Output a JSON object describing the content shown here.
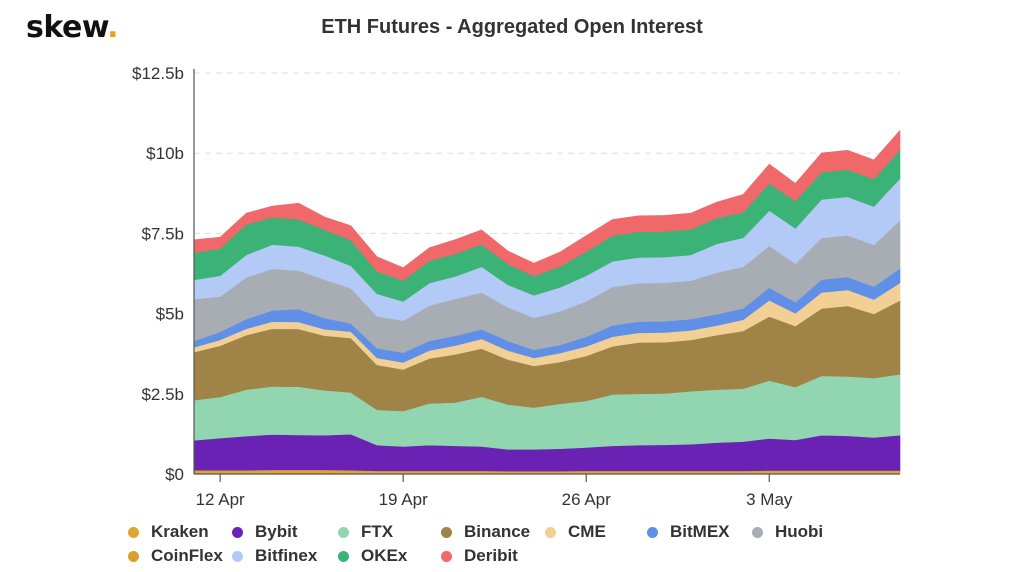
{
  "logo": {
    "text": "skew",
    "dot": "."
  },
  "chart_data": {
    "type": "area",
    "stacked": true,
    "title": "ETH Futures - Aggregated Open Interest",
    "xlabel": "",
    "ylabel": "",
    "ylim": [
      0,
      12.5
    ],
    "y_ticks": [
      {
        "value": 0,
        "label": "$0"
      },
      {
        "value": 2.5,
        "label": "$2.5b"
      },
      {
        "value": 5,
        "label": "$5b"
      },
      {
        "value": 7.5,
        "label": "$7.5b"
      },
      {
        "value": 10,
        "label": "$10b"
      },
      {
        "value": 12.5,
        "label": "$12.5b"
      }
    ],
    "x": [
      "2021-04-11",
      "2021-04-12",
      "2021-04-13",
      "2021-04-14",
      "2021-04-15",
      "2021-04-16",
      "2021-04-17",
      "2021-04-18",
      "2021-04-19",
      "2021-04-20",
      "2021-04-21",
      "2021-04-22",
      "2021-04-23",
      "2021-04-24",
      "2021-04-25",
      "2021-04-26",
      "2021-04-27",
      "2021-04-28",
      "2021-04-29",
      "2021-04-30",
      "2021-05-01",
      "2021-05-02",
      "2021-05-03",
      "2021-05-04",
      "2021-05-05",
      "2021-05-06",
      "2021-05-07",
      "2021-05-08"
    ],
    "x_ticks": [
      {
        "value": "2021-04-12",
        "label": "12 Apr"
      },
      {
        "value": "2021-04-19",
        "label": "19 Apr"
      },
      {
        "value": "2021-04-26",
        "label": "26 Apr"
      },
      {
        "value": "2021-05-03",
        "label": "3 May"
      }
    ],
    "grid": true,
    "legend_position": "bottom",
    "series": [
      {
        "name": "Kraken",
        "color": "#e0a52f",
        "values": [
          0.09,
          0.09,
          0.09,
          0.1,
          0.1,
          0.1,
          0.09,
          0.08,
          0.08,
          0.08,
          0.08,
          0.08,
          0.07,
          0.07,
          0.07,
          0.08,
          0.08,
          0.08,
          0.08,
          0.08,
          0.08,
          0.08,
          0.09,
          0.09,
          0.09,
          0.09,
          0.09,
          0.09
        ]
      },
      {
        "name": "CoinFlex",
        "color": "#d9a02c",
        "values": [
          0.03,
          0.03,
          0.03,
          0.03,
          0.03,
          0.03,
          0.03,
          0.02,
          0.02,
          0.02,
          0.02,
          0.02,
          0.02,
          0.02,
          0.02,
          0.02,
          0.02,
          0.02,
          0.02,
          0.02,
          0.02,
          0.02,
          0.02,
          0.02,
          0.02,
          0.02,
          0.02,
          0.02
        ]
      },
      {
        "name": "Bybit",
        "color": "#6a22b5",
        "values": [
          0.93,
          1.0,
          1.06,
          1.1,
          1.09,
          1.08,
          1.12,
          0.8,
          0.76,
          0.8,
          0.78,
          0.76,
          0.68,
          0.68,
          0.7,
          0.73,
          0.78,
          0.8,
          0.81,
          0.83,
          0.88,
          0.91,
          1.0,
          0.95,
          1.1,
          1.08,
          1.03,
          1.1
        ]
      },
      {
        "name": "FTX",
        "color": "#91d6b1",
        "values": [
          1.25,
          1.28,
          1.45,
          1.5,
          1.5,
          1.4,
          1.3,
          1.1,
          1.1,
          1.3,
          1.35,
          1.55,
          1.4,
          1.3,
          1.4,
          1.45,
          1.6,
          1.6,
          1.6,
          1.65,
          1.65,
          1.65,
          1.8,
          1.65,
          1.85,
          1.85,
          1.85,
          1.9
        ]
      },
      {
        "name": "Binance",
        "color": "#a08347",
        "values": [
          1.5,
          1.6,
          1.7,
          1.8,
          1.8,
          1.7,
          1.7,
          1.4,
          1.3,
          1.4,
          1.5,
          1.5,
          1.4,
          1.3,
          1.3,
          1.4,
          1.5,
          1.6,
          1.6,
          1.6,
          1.7,
          1.8,
          2.0,
          1.9,
          2.1,
          2.2,
          2.0,
          2.3
        ]
      },
      {
        "name": "CME",
        "color": "#f2cf94",
        "values": [
          0.15,
          0.18,
          0.2,
          0.22,
          0.22,
          0.2,
          0.2,
          0.22,
          0.22,
          0.25,
          0.28,
          0.3,
          0.28,
          0.25,
          0.28,
          0.3,
          0.3,
          0.3,
          0.3,
          0.3,
          0.3,
          0.35,
          0.5,
          0.4,
          0.5,
          0.5,
          0.45,
          0.55
        ]
      },
      {
        "name": "BitMEX",
        "color": "#5f8fe6",
        "values": [
          0.2,
          0.25,
          0.3,
          0.35,
          0.4,
          0.35,
          0.25,
          0.3,
          0.3,
          0.3,
          0.3,
          0.3,
          0.3,
          0.25,
          0.25,
          0.3,
          0.35,
          0.35,
          0.35,
          0.35,
          0.35,
          0.35,
          0.4,
          0.35,
          0.4,
          0.4,
          0.4,
          0.45
        ]
      },
      {
        "name": "Huobi",
        "color": "#a7adb3",
        "values": [
          1.3,
          1.1,
          1.3,
          1.3,
          1.2,
          1.2,
          1.1,
          1.0,
          1.0,
          1.1,
          1.15,
          1.15,
          1.05,
          1.0,
          1.05,
          1.1,
          1.2,
          1.2,
          1.2,
          1.2,
          1.3,
          1.3,
          1.3,
          1.2,
          1.3,
          1.3,
          1.3,
          1.5
        ]
      },
      {
        "name": "Bitfinex",
        "color": "#b3c9f6",
        "values": [
          0.6,
          0.65,
          0.7,
          0.75,
          0.75,
          0.75,
          0.7,
          0.7,
          0.6,
          0.7,
          0.7,
          0.8,
          0.7,
          0.7,
          0.75,
          0.8,
          0.8,
          0.8,
          0.8,
          0.8,
          0.9,
          0.9,
          1.1,
          1.1,
          1.2,
          1.2,
          1.2,
          1.3
        ]
      },
      {
        "name": "OKEx",
        "color": "#3bb376",
        "values": [
          0.85,
          0.85,
          0.95,
          0.85,
          0.85,
          0.8,
          0.8,
          0.7,
          0.65,
          0.7,
          0.7,
          0.7,
          0.65,
          0.6,
          0.65,
          0.75,
          0.8,
          0.8,
          0.8,
          0.8,
          0.8,
          0.8,
          0.85,
          0.85,
          0.85,
          0.85,
          0.85,
          0.9
        ]
      },
      {
        "name": "Deribit",
        "color": "#f0686a",
        "values": [
          0.4,
          0.35,
          0.35,
          0.35,
          0.5,
          0.4,
          0.45,
          0.45,
          0.4,
          0.4,
          0.45,
          0.45,
          0.4,
          0.4,
          0.45,
          0.5,
          0.5,
          0.5,
          0.5,
          0.5,
          0.5,
          0.55,
          0.6,
          0.55,
          0.6,
          0.6,
          0.6,
          0.6
        ]
      }
    ]
  },
  "legend_rows": [
    [
      "Kraken",
      "Bybit",
      "FTX",
      "Binance",
      "CME",
      "BitMEX",
      "Huobi"
    ],
    [
      "CoinFlex",
      "Bitfinex",
      "OKEx",
      "Deribit"
    ]
  ]
}
